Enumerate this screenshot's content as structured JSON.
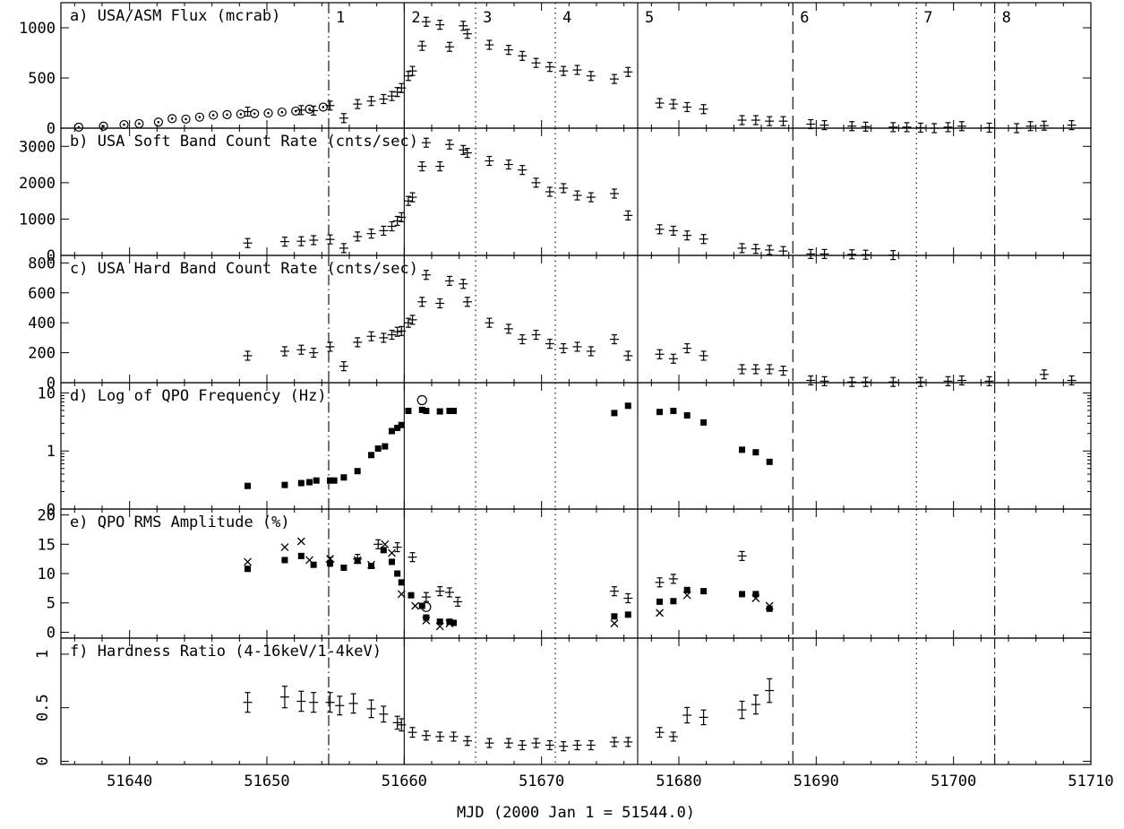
{
  "chart_data": {
    "type": "scatter",
    "xlabel": "MJD (2000 Jan 1 = 51544.0)",
    "x_ticks": [
      51640,
      51650,
      51660,
      51670,
      51680,
      51690,
      51700,
      51710
    ],
    "x_ticklabels": [
      "51640",
      "51650",
      "51660",
      "51670",
      "51680",
      "51690",
      "51700",
      "51710"
    ],
    "xlim": [
      51635,
      51710
    ],
    "vertical_lines": [
      {
        "x": 51654.5,
        "style": "dash-dot",
        "label": "1"
      },
      {
        "x": 51660.0,
        "style": "solid",
        "label": "2"
      },
      {
        "x": 51665.2,
        "style": "dotted",
        "label": "3"
      },
      {
        "x": 51671.0,
        "style": "dotted",
        "label": "4"
      },
      {
        "x": 51677.0,
        "style": "solid",
        "label": "5"
      },
      {
        "x": 51688.3,
        "style": "dashed",
        "label": "6"
      },
      {
        "x": 51697.3,
        "style": "dotted",
        "label": "7"
      },
      {
        "x": 51703.0,
        "style": "dash-dot",
        "label": "8"
      }
    ],
    "panels": [
      {
        "title": "a) USA/ASM Flux (mcrab)",
        "scale": "linear",
        "ylim": [
          0,
          1250
        ],
        "y_ticks": [
          0,
          500,
          1000
        ],
        "y_ticklabels": [
          "0",
          "500",
          "1000"
        ],
        "series": [
          {
            "marker": "circle-dot",
            "x": [
              51636.3,
              51638.1,
              51639.6,
              51640.7,
              51642.1,
              51643.1,
              51644.1,
              51645.1,
              51646.1,
              51647.1,
              51648.1,
              51649.1,
              51650.1,
              51651.1,
              51652.1,
              51653.1,
              51654.1
            ],
            "y": [
              10,
              20,
              35,
              45,
              60,
              95,
              90,
              110,
              130,
              135,
              140,
              145,
              150,
              160,
              170,
              190,
              210
            ]
          },
          {
            "marker": "errbar",
            "x": [
              51648.6,
              51652.5,
              51653.4,
              51654.6,
              51655.6,
              51656.6,
              51657.6,
              51658.5,
              51659.1,
              51659.5,
              51659.8,
              51660.3,
              51660.6,
              51661.3,
              51661.6,
              51662.6,
              51663.3,
              51664.3,
              51664.6,
              51666.2,
              51667.6,
              51668.6,
              51669.6,
              51670.6,
              51671.6,
              51672.6,
              51673.6,
              51675.3,
              51676.3,
              51678.6,
              51679.6,
              51680.6,
              51681.8,
              51684.6,
              51685.6,
              51686.6,
              51687.6,
              51689.6,
              51690.6,
              51692.6,
              51693.6,
              51695.6,
              51696.6,
              51697.6,
              51698.6,
              51699.6,
              51700.6,
              51702.6,
              51704.6,
              51705.6,
              51706.6,
              51708.6
            ],
            "y": [
              165,
              180,
              175,
              225,
              100,
              240,
              270,
              290,
              320,
              360,
              400,
              520,
              570,
              820,
              1060,
              1030,
              810,
              1020,
              940,
              830,
              780,
              720,
              650,
              610,
              570,
              580,
              520,
              490,
              560,
              250,
              240,
              210,
              190,
              80,
              80,
              70,
              70,
              40,
              30,
              20,
              15,
              10,
              10,
              5,
              0,
              10,
              20,
              5,
              0,
              20,
              25,
              30
            ]
          }
        ]
      },
      {
        "title": "b) USA Soft Band Count Rate (cnts/sec)",
        "scale": "linear",
        "ylim": [
          0,
          3500
        ],
        "y_ticks": [
          0,
          1000,
          2000,
          3000
        ],
        "y_ticklabels": [
          "0",
          "1000",
          "2000",
          "3000"
        ],
        "series": [
          {
            "marker": "errbar",
            "x": [
              51648.6,
              51651.3,
              51652.5,
              51653.4,
              51654.6,
              51655.6,
              51656.6,
              51657.6,
              51658.5,
              51659.1,
              51659.5,
              51659.8,
              51660.3,
              51660.6,
              51661.3,
              51661.6,
              51662.6,
              51663.3,
              51664.3,
              51664.6,
              51666.2,
              51667.6,
              51668.6,
              51669.6,
              51670.6,
              51671.6,
              51672.6,
              51673.6,
              51675.3,
              51676.3,
              51678.6,
              51679.6,
              51680.6,
              51681.8,
              51684.6,
              51685.6,
              51686.6,
              51687.6,
              51689.6,
              51690.6,
              51692.6,
              51693.6,
              51695.6
            ],
            "y": [
              340,
              380,
              390,
              420,
              440,
              200,
              520,
              600,
              680,
              800,
              950,
              1050,
              1500,
              1600,
              2450,
              3100,
              2450,
              3050,
              2900,
              2820,
              2600,
              2500,
              2350,
              2000,
              1750,
              1850,
              1650,
              1600,
              1700,
              1100,
              720,
              680,
              550,
              450,
              200,
              180,
              150,
              120,
              40,
              40,
              30,
              20,
              10
            ]
          }
        ]
      },
      {
        "title": "c) USA Hard Band Count Rate (cnts/sec)",
        "scale": "linear",
        "ylim": [
          0,
          850
        ],
        "y_ticks": [
          0,
          200,
          400,
          600,
          800
        ],
        "y_ticklabels": [
          "0",
          "200",
          "400",
          "600",
          "800"
        ],
        "series": [
          {
            "marker": "errbar",
            "x": [
              51648.6,
              51651.3,
              51652.5,
              51653.4,
              51654.6,
              51655.6,
              51656.6,
              51657.6,
              51658.5,
              51659.1,
              51659.5,
              51659.8,
              51660.3,
              51660.6,
              51661.3,
              51661.6,
              51662.6,
              51663.3,
              51664.3,
              51664.6,
              51666.2,
              51667.6,
              51668.6,
              51669.6,
              51670.6,
              51671.6,
              51672.6,
              51673.6,
              51675.3,
              51676.3,
              51678.6,
              51679.6,
              51680.6,
              51681.8,
              51684.6,
              51685.6,
              51686.6,
              51687.6,
              51689.6,
              51690.6,
              51692.6,
              51693.6,
              51695.6,
              51697.6,
              51699.6,
              51700.6,
              51702.6,
              51706.6,
              51708.6
            ],
            "y": [
              180,
              210,
              220,
              200,
              240,
              110,
              270,
              310,
              300,
              320,
              340,
              345,
              400,
              420,
              540,
              720,
              530,
              680,
              660,
              540,
              400,
              360,
              290,
              320,
              260,
              230,
              240,
              210,
              290,
              180,
              190,
              160,
              230,
              180,
              90,
              90,
              90,
              80,
              15,
              10,
              5,
              5,
              5,
              5,
              10,
              15,
              10,
              55,
              15
            ]
          }
        ]
      },
      {
        "title": "d) Log of QPO Frequency (Hz)",
        "scale": "log",
        "ylim": [
          0.1,
          15
        ],
        "y_ticks": [
          1,
          10
        ],
        "y_ticklabels": [
          "1",
          "10"
        ],
        "y_bottom_label": "0",
        "series": [
          {
            "marker": "filled-square",
            "x": [
              51648.6,
              51651.3,
              51652.5,
              51653.1,
              51653.6,
              51654.6,
              51654.9,
              51655.6,
              51656.6,
              51657.6,
              51658.1,
              51658.6,
              51659.1,
              51659.5,
              51659.8,
              51660.3,
              51661.3,
              51661.6,
              51662.6,
              51663.3,
              51663.6,
              51675.3,
              51676.3,
              51678.6,
              51679.6,
              51680.6,
              51681.8,
              51684.6,
              51685.6,
              51686.6
            ],
            "y": [
              0.25,
              0.26,
              0.28,
              0.29,
              0.31,
              0.31,
              0.31,
              0.35,
              0.45,
              0.85,
              1.1,
              1.2,
              2.2,
              2.5,
              2.8,
              4.9,
              5.1,
              4.9,
              4.8,
              4.9,
              4.9,
              4.5,
              6.0,
              4.7,
              4.9,
              4.1,
              3.1,
              1.05,
              0.95,
              0.65
            ]
          },
          {
            "marker": "open-circle",
            "x": [
              51661.3
            ],
            "y": [
              7.5
            ]
          }
        ]
      },
      {
        "title": "e) QPO RMS Amplitude (%)",
        "scale": "linear",
        "ylim": [
          -1,
          21
        ],
        "y_ticks": [
          0,
          5,
          10,
          15,
          20
        ],
        "y_ticklabels": [
          "0",
          "5",
          "10",
          "15",
          "20"
        ],
        "series": [
          {
            "marker": "filled-square",
            "x": [
              51648.6,
              51651.3,
              51652.5,
              51653.4,
              51654.6,
              51655.6,
              51656.6,
              51657.6,
              51658.5,
              51659.1,
              51659.5,
              51659.8,
              51660.5,
              51661.3,
              51661.6,
              51662.6,
              51663.3,
              51663.6,
              51675.3,
              51676.3,
              51678.6,
              51679.6,
              51680.6,
              51681.8,
              51684.6,
              51685.6,
              51686.6
            ],
            "y": [
              10.8,
              12.3,
              13.0,
              11.5,
              11.8,
              11.0,
              12.2,
              11.3,
              14.0,
              12.0,
              10.0,
              8.5,
              6.3,
              4.5,
              2.5,
              1.8,
              1.8,
              1.6,
              2.7,
              3.0,
              5.2,
              5.3,
              7.2,
              7.0,
              6.5,
              6.5,
              4.0
            ]
          },
          {
            "marker": "cross",
            "x": [
              51648.6,
              51651.3,
              51652.5,
              51653.1,
              51654.6,
              51656.6,
              51657.6,
              51658.6,
              51659.1,
              51659.8,
              51660.8,
              51661.6,
              51662.6,
              51663.3,
              51675.3,
              51678.6,
              51680.6,
              51685.6,
              51686.6
            ],
            "y": [
              12.0,
              14.5,
              15.5,
              12.3,
              12.5,
              12.3,
              11.5,
              15.0,
              13.5,
              6.5,
              4.5,
              2.0,
              1.0,
              1.5,
              1.5,
              3.3,
              6.3,
              5.8,
              4.5
            ]
          },
          {
            "marker": "errbar",
            "x": [
              51654.6,
              51656.6,
              51658.1,
              51659.5,
              51660.6,
              51661.6,
              51662.6,
              51663.3,
              51663.9,
              51675.3,
              51676.3,
              51678.6,
              51679.6,
              51684.6
            ],
            "y": [
              12.0,
              12.5,
              15.0,
              14.5,
              12.8,
              6.0,
              7.0,
              6.8,
              5.2,
              7.0,
              5.8,
              8.5,
              9.1,
              13.0
            ]
          },
          {
            "marker": "open-circle",
            "x": [
              51661.6
            ],
            "y": [
              4.3
            ]
          }
        ]
      },
      {
        "title": "f) Hardness Ratio (4-16keV/1-4keV)",
        "scale": "linear",
        "ylim": [
          -0.03,
          1.15
        ],
        "y_ticks": [
          0,
          0.5,
          1
        ],
        "y_ticklabels": [
          "0",
          "0.5",
          "1"
        ],
        "series": [
          {
            "marker": "errbar",
            "x": [
              51648.6,
              51651.3,
              51652.5,
              51653.4,
              51654.6,
              51655.3,
              51656.3,
              51657.6,
              51658.5,
              51659.5,
              51659.8,
              51660.6,
              51661.6,
              51662.6,
              51663.6,
              51664.6,
              51666.2,
              51667.6,
              51668.6,
              51669.6,
              51670.6,
              51671.6,
              51672.6,
              51673.6,
              51675.3,
              51676.3,
              51678.6,
              51679.6,
              51680.6,
              51681.8,
              51684.6,
              51685.6,
              51686.6
            ],
            "y": [
              0.55,
              0.6,
              0.56,
              0.55,
              0.55,
              0.52,
              0.54,
              0.49,
              0.44,
              0.36,
              0.34,
              0.27,
              0.24,
              0.23,
              0.23,
              0.19,
              0.17,
              0.17,
              0.15,
              0.17,
              0.15,
              0.14,
              0.15,
              0.15,
              0.18,
              0.18,
              0.27,
              0.23,
              0.43,
              0.41,
              0.48,
              0.53,
              0.66
            ]
          }
        ]
      }
    ]
  }
}
